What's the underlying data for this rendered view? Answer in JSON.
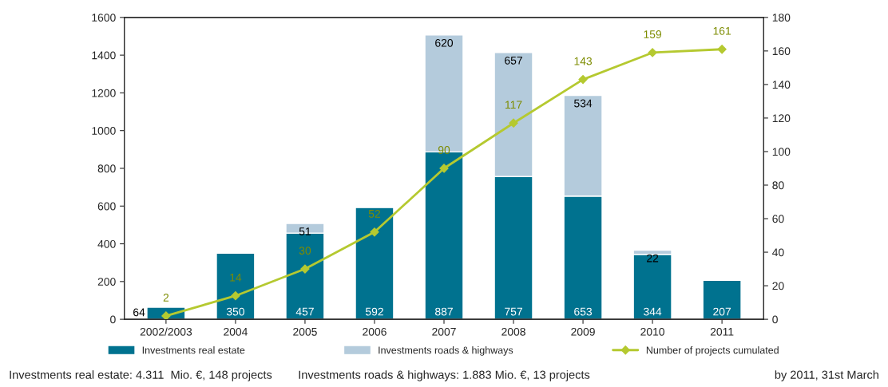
{
  "chart_data": {
    "type": "bar",
    "stacked": true,
    "categories": [
      "2002/2003",
      "2004",
      "2005",
      "2006",
      "2007",
      "2008",
      "2009",
      "2010",
      "2011"
    ],
    "series": [
      {
        "name": "Investments real estate",
        "color": "#00728f",
        "values": [
          64,
          350,
          457,
          592,
          887,
          757,
          653,
          344,
          207
        ]
      },
      {
        "name": "Investments roads & highways",
        "color": "#b4cbdc",
        "values": [
          null,
          null,
          51,
          null,
          620,
          657,
          534,
          22,
          null
        ]
      },
      {
        "name": "Number of projects cumulated",
        "type": "line",
        "axis": "y2",
        "color": "#b5c930",
        "marker": "diamond",
        "values": [
          2,
          14,
          30,
          52,
          90,
          117,
          143,
          159,
          161
        ]
      }
    ],
    "ylim": [
      0,
      1600
    ],
    "yticks": [
      0,
      200,
      400,
      600,
      800,
      1000,
      1200,
      1400,
      1600
    ],
    "y2lim": [
      0,
      180
    ],
    "y2ticks": [
      0,
      20,
      40,
      60,
      80,
      100,
      120,
      140,
      160,
      180
    ],
    "data_labels": true,
    "legend": "bottom",
    "grid": false,
    "annotations": [
      "Investments real estate: 4.311  Mio. €, 148 projects",
      "Investments roads & highways: 1.883 Mio. €, 13 projects",
      "by 2011, 31st March"
    ]
  }
}
